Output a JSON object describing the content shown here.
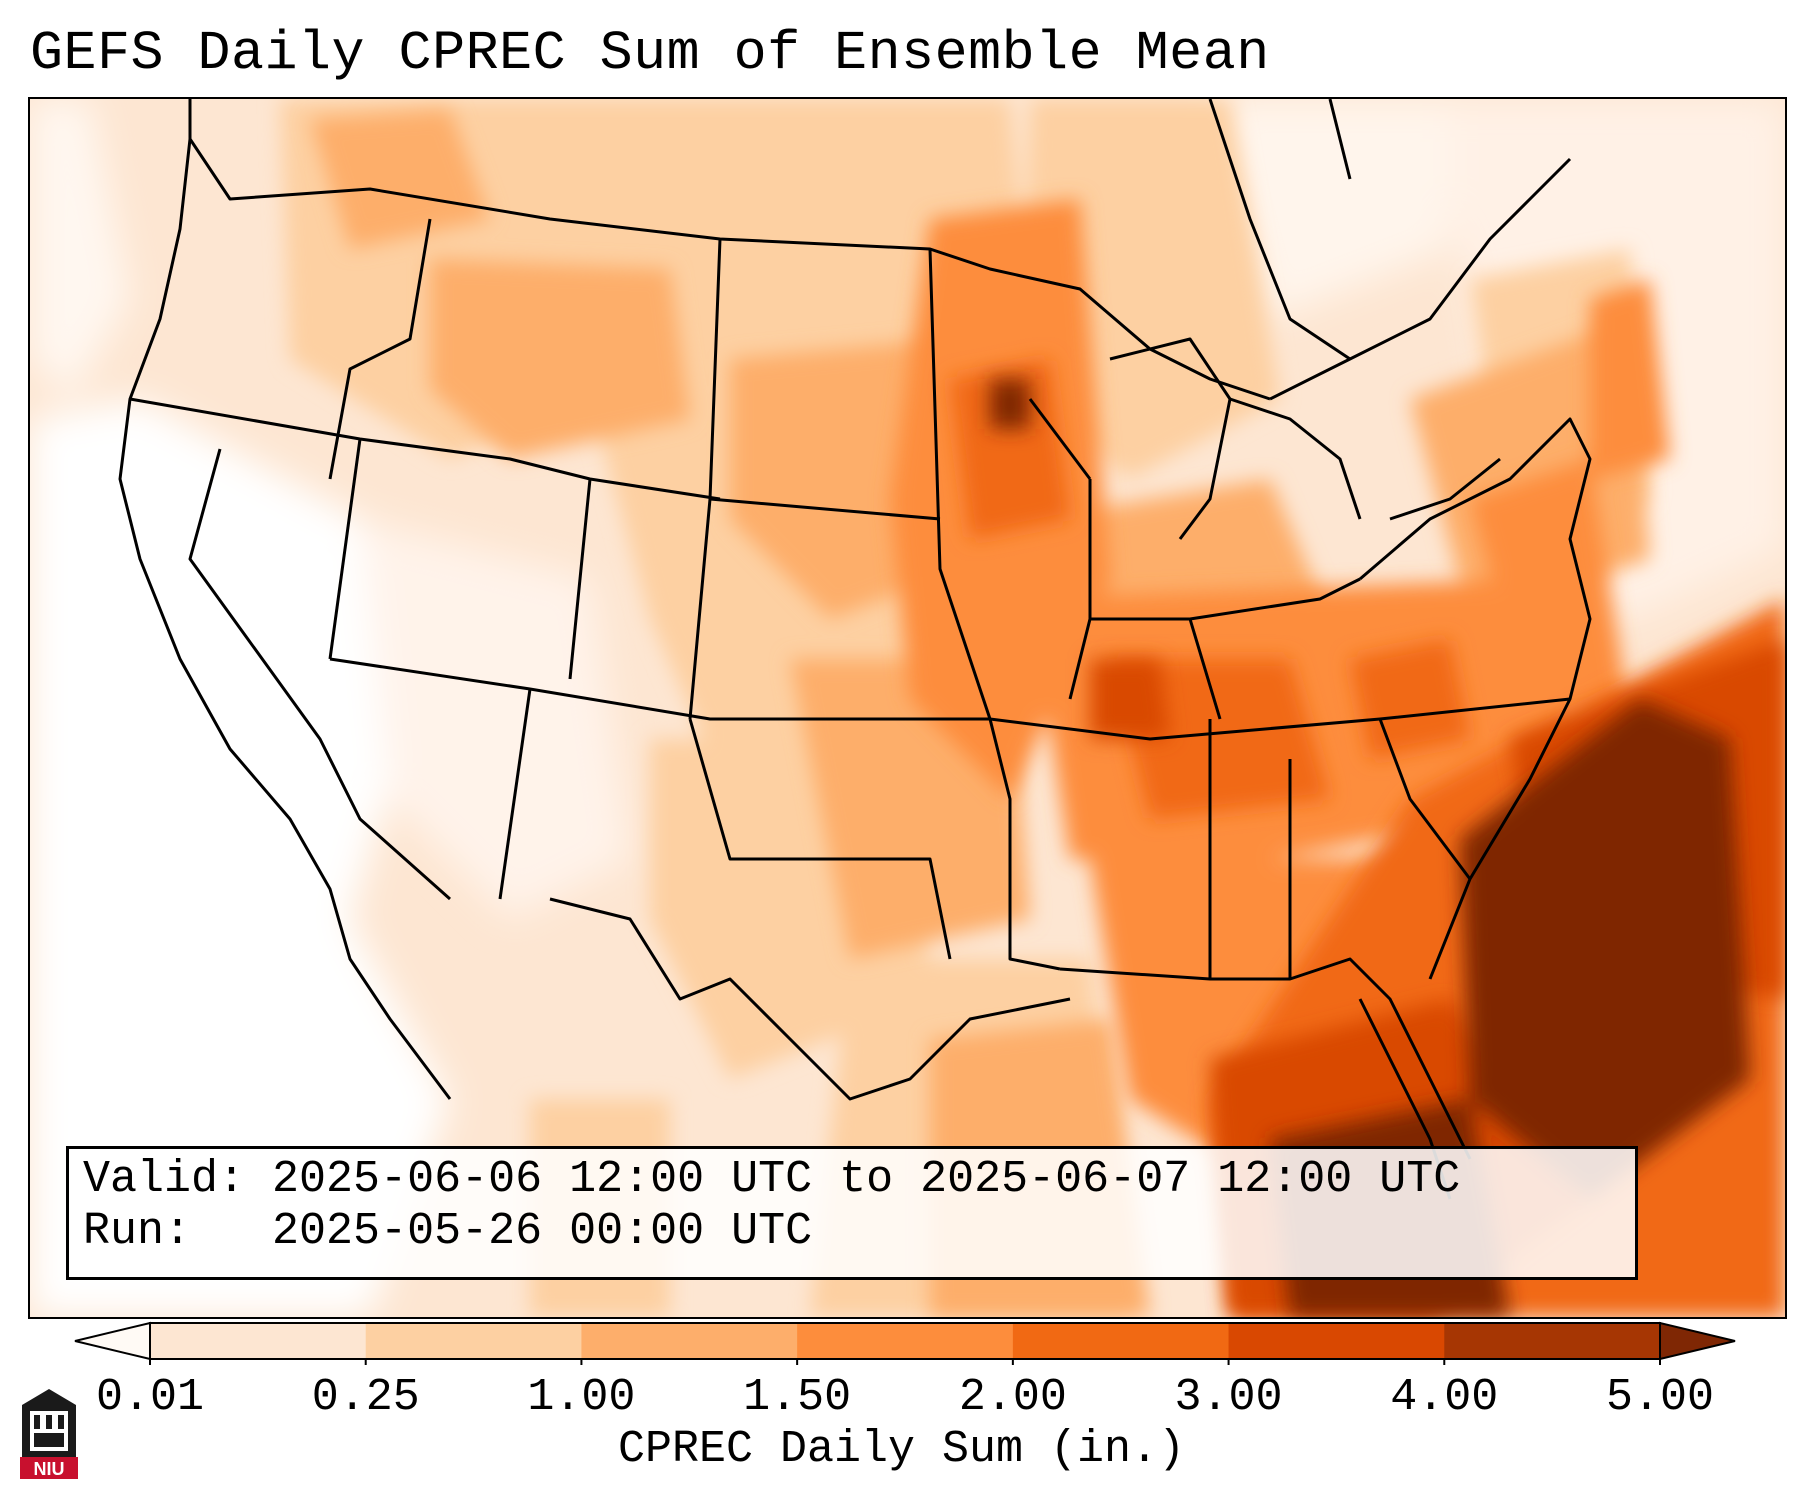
{
  "title": "GEFS Daily CPREC Sum of Ensemble Mean",
  "info": {
    "valid_label": "Valid:",
    "valid_value": "2025-06-06 12:00 UTC to 2025-06-07 12:00 UTC",
    "run_label": "Run:",
    "run_value": "2025-05-26 00:00 UTC"
  },
  "colorbar": {
    "label": "CPREC Daily Sum (in.)",
    "ticks": [
      "0.01",
      "0.25",
      "1.00",
      "1.50",
      "2.00",
      "3.00",
      "4.00",
      "5.00"
    ],
    "colors": {
      "under": "#fffaf5",
      "b1": "#fde6d2",
      "b2": "#fdd0a2",
      "b3": "#fdae6b",
      "b4": "#fd8d3c",
      "b5": "#f16913",
      "b6": "#d94801",
      "b7": "#a63603",
      "over": "#7f2704"
    },
    "extend": "both"
  },
  "logo": {
    "text": "NIU",
    "icon": "university-tower-icon",
    "color": "#c8102e"
  },
  "map": {
    "projection": "Lambert Conformal",
    "region": "CONUS",
    "icon": "state-boundaries"
  }
}
